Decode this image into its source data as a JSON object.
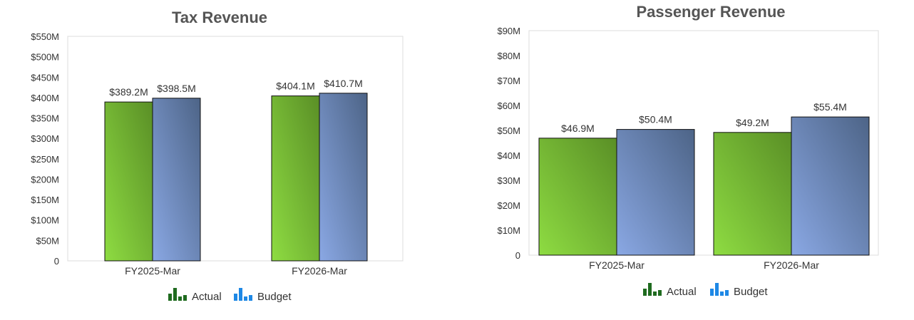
{
  "chart_data": [
    {
      "type": "bar",
      "title": "Tax Revenue",
      "categories": [
        "FY2025-Mar",
        "FY2026-Mar"
      ],
      "series": [
        {
          "name": "Actual",
          "values": [
            389.2,
            404.1
          ],
          "labels": [
            "$389.2M",
            "$404.1M"
          ]
        },
        {
          "name": "Budget",
          "values": [
            398.5,
            410.7
          ],
          "labels": [
            "$398.5M",
            "$410.7M"
          ]
        }
      ],
      "yticks": [
        {
          "value": 0,
          "label": "0"
        },
        {
          "value": 50,
          "label": "$50M"
        },
        {
          "value": 100,
          "label": "$100M"
        },
        {
          "value": 150,
          "label": "$150M"
        },
        {
          "value": 200,
          "label": "$200M"
        },
        {
          "value": 250,
          "label": "$250M"
        },
        {
          "value": 300,
          "label": "$300M"
        },
        {
          "value": 350,
          "label": "$350M"
        },
        {
          "value": 400,
          "label": "$400M"
        },
        {
          "value": 450,
          "label": "$450M"
        },
        {
          "value": 500,
          "label": "$500M"
        },
        {
          "value": 550,
          "label": "$550M"
        }
      ],
      "ylim": [
        0,
        550
      ],
      "grid": false,
      "legend": "bottom"
    },
    {
      "type": "bar",
      "title": "Passenger Revenue",
      "categories": [
        "FY2025-Mar",
        "FY2026-Mar"
      ],
      "series": [
        {
          "name": "Actual",
          "values": [
            46.9,
            49.2
          ],
          "labels": [
            "$46.9M",
            "$49.2M"
          ]
        },
        {
          "name": "Budget",
          "values": [
            50.4,
            55.4
          ],
          "labels": [
            "$50.4M",
            "$55.4M"
          ]
        }
      ],
      "yticks": [
        {
          "value": 0,
          "label": "0"
        },
        {
          "value": 10,
          "label": "$10M"
        },
        {
          "value": 20,
          "label": "$20M"
        },
        {
          "value": 30,
          "label": "$30M"
        },
        {
          "value": 40,
          "label": "$40M"
        },
        {
          "value": 50,
          "label": "$50M"
        },
        {
          "value": 60,
          "label": "$60M"
        },
        {
          "value": 70,
          "label": "$70M"
        },
        {
          "value": 80,
          "label": "$80M"
        },
        {
          "value": 90,
          "label": "$90M"
        }
      ],
      "ylim": [
        0,
        90
      ],
      "grid": false,
      "legend": "bottom"
    }
  ],
  "colors": {
    "actual_light": "#8edc42",
    "actual_dark": "#5a8f26",
    "budget_light": "#8aa8e4",
    "budget_dark": "#4d6487",
    "legend_actual_icon": "#1f6b1f",
    "legend_budget_icon": "#1e88e5",
    "bar_outline": "#111111",
    "plot_border": "#dddddd"
  },
  "legend_icons": {
    "actual": "green-bar-chart-icon",
    "budget": "blue-bar-chart-icon"
  }
}
